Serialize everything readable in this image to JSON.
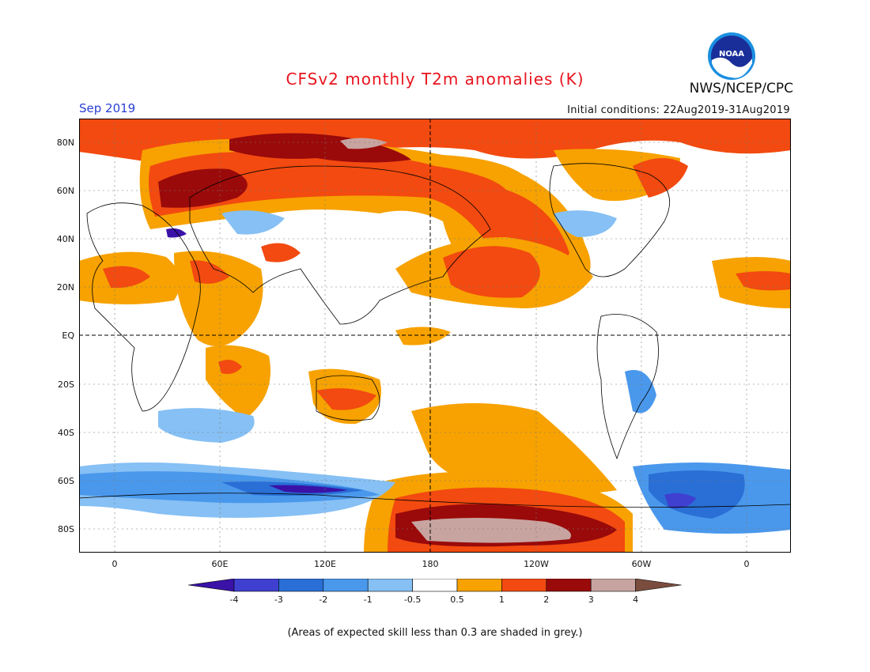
{
  "title": "CFSv2 monthly T2m anomalies (K)",
  "valid_month": "Sep 2019",
  "initial_conditions": "Initial conditions: 22Aug2019-31Aug2019",
  "agency": "NWS/NCEP/CPC",
  "logo_text": "NOAA",
  "footnote": "(Areas of expected skill less than 0.3 are shaded in grey.)",
  "lat_labels": [
    "80N",
    "60N",
    "40N",
    "20N",
    "EQ",
    "20S",
    "40S",
    "60S",
    "80S"
  ],
  "lon_labels": [
    "0",
    "60E",
    "120E",
    "180",
    "120W",
    "60W",
    "0"
  ],
  "colorbar": {
    "labels": [
      "-4",
      "-3",
      "-2",
      "-1",
      "-0.5",
      "0.5",
      "1",
      "2",
      "3",
      "4"
    ],
    "colors": [
      "#3a12a8",
      "#3f3fd0",
      "#2a6fd6",
      "#4a98ec",
      "#86c0f4",
      "#ffffff",
      "#f7a200",
      "#f24a10",
      "#9a0a0a",
      "#c8a4a0",
      "#7a4d3f"
    ]
  }
}
